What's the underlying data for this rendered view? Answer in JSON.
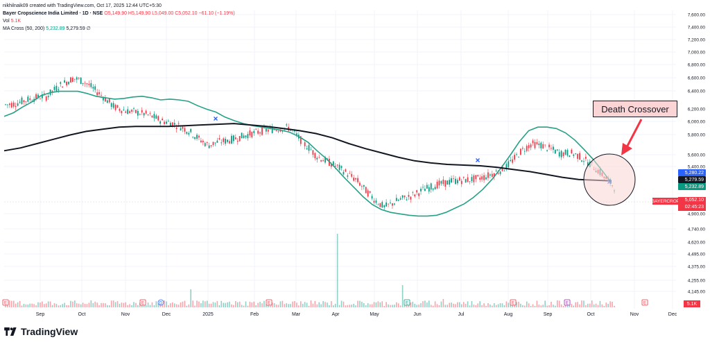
{
  "header": {
    "credit": "nikhilnaik09 created with TradingView.com, Oct 17, 2025 12:44 UTC+5:30",
    "symbol_line": "Bayer Cropscience India Limited · 1D · NSE",
    "ohlc": "O5,149.90  H5,149.90  L5,049.00  C5,052.10  −61.10 (−1.19%)",
    "vol_label": "Vol",
    "vol_value": "5.1K",
    "ma_label": "MA Cross (50, 200)",
    "ma_fast": "5,232.89",
    "ma_slow": "5,279.59",
    "ma_suffix": "∅"
  },
  "annotation": {
    "label": "Death Crossover"
  },
  "price_axis": {
    "ticks": [
      "7,600.00",
      "7,400.00",
      "7,200.00",
      "7,000.00",
      "6,800.00",
      "6,600.00",
      "6,400.00",
      "6,200.00",
      "6,000.00",
      "5,800.00",
      "5,600.00",
      "5,400.00",
      "4,900.00",
      "4,740.00",
      "4,620.00",
      "4,495.00",
      "4,375.00",
      "4,255.00",
      "4,145.00"
    ],
    "tag_ma_upper": "5,280.22",
    "tag_ma_slow": "5,279.59",
    "tag_ma_fast": "5,232.89",
    "tag_symbol": "BAYERCROP",
    "tag_price": "5,052.10",
    "tag_countdown": "02:45:23",
    "tag_volume": "5.1K"
  },
  "time_axis": {
    "ticks": [
      "Sep",
      "Oct",
      "Nov",
      "Dec",
      "2025",
      "Feb",
      "Mar",
      "Apr",
      "May",
      "Jun",
      "Jul",
      "Aug",
      "Sep",
      "Oct",
      "Nov",
      "Dec"
    ]
  },
  "event_markers": [
    "E",
    "E",
    "D",
    "E",
    "E",
    "E",
    "E",
    "E"
  ],
  "brand": {
    "name": "TradingView"
  },
  "colors": {
    "up": "#089981",
    "down": "#f23645",
    "ma_fast": "#26a087",
    "ma_slow": "#131722",
    "cross": "#2962ff",
    "annotation_fill": "#fbd5d5"
  },
  "chart_data": {
    "type": "line",
    "series": [
      {
        "name": "MA Cross (50, 200)",
        "values": [
          6180,
          6230,
          6310,
          6380,
          6470,
          6510,
          6530,
          6530,
          6530,
          6500,
          6460,
          6440,
          6420,
          6430,
          6450,
          6460,
          6440,
          6410,
          6420,
          6410,
          6390,
          6330,
          6280,
          6240,
          6170,
          6120,
          6080,
          6050,
          6030,
          6010,
          5990,
          5960,
          5900,
          5820,
          5700,
          5590,
          5460,
          5320,
          5190,
          5060,
          4950,
          4880,
          4840,
          4820,
          4800,
          4790,
          4790,
          4800,
          4840,
          4900,
          4960,
          5050,
          5160,
          5300,
          5460,
          5640,
          5830,
          5980,
          6030,
          6030,
          6010,
          5950,
          5850,
          5720,
          5580,
          5420,
          5250
        ]
      },
      {
        "name": "MA Cross (50, 200)",
        "values": [
          5700,
          5740,
          5800,
          5860,
          5920,
          5970,
          6000,
          6030,
          6040,
          6040,
          6040,
          6050,
          6060,
          6070,
          6080,
          6060,
          6040,
          6010,
          5980,
          5940,
          5880,
          5800,
          5730,
          5670,
          5610,
          5560,
          5530,
          5510,
          5500,
          5490,
          5470,
          5440,
          5410,
          5370,
          5330,
          5300,
          5290,
          5280
        ]
      }
    ]
  }
}
